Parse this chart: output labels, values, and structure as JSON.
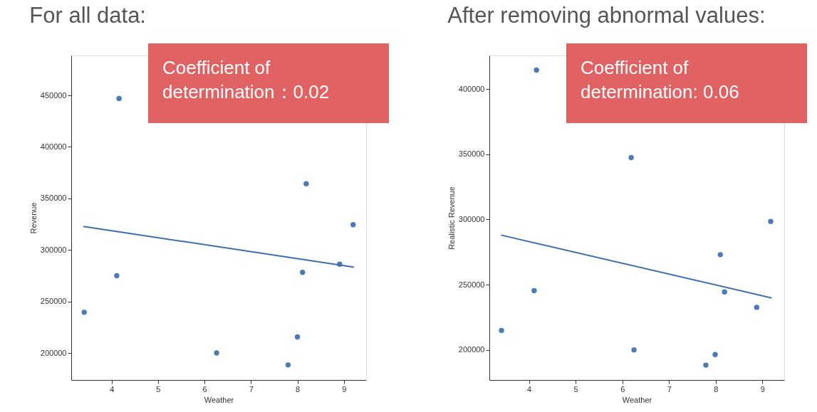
{
  "chart_data": [
    {
      "type": "scatter",
      "title": "For all data:",
      "xlabel": "Weather",
      "ylabel": "Revenue",
      "xlim": [
        3.13,
        9.48
      ],
      "ylim": [
        173800,
        488700
      ],
      "xticks": [
        4,
        5,
        6,
        7,
        8,
        9
      ],
      "yticks": [
        200000,
        250000,
        300000,
        350000,
        400000,
        450000
      ],
      "grid": false,
      "annotations": [
        "Coefficient of\ndetermination：0.02"
      ],
      "series": [
        {
          "type": "scatter",
          "marker": "circle",
          "color": "#4c7bb3",
          "x": [
            4.16,
            4.11,
            3.41,
            6.26,
            8.0,
            7.8,
            8.11,
            8.19,
            8.91,
            9.2
          ],
          "values": [
            447000,
            275000,
            239500,
            200000,
            215600,
            188400,
            278300,
            364300,
            286200,
            324500
          ]
        },
        {
          "type": "line",
          "color": "#3d6fa8",
          "x": [
            3.39,
            9.22
          ],
          "values": [
            322800,
            283300
          ]
        }
      ]
    },
    {
      "type": "scatter",
      "title": "After removing abnormal values:",
      "xlabel": "Weather",
      "ylabel": "Realistic Revenue",
      "xlim": [
        3.15,
        9.47
      ],
      "ylim": [
        176900,
        425700
      ],
      "xticks": [
        4,
        5,
        6,
        7,
        8,
        9
      ],
      "yticks": [
        200000,
        250000,
        300000,
        350000,
        400000
      ],
      "grid": false,
      "annotations": [
        "Coefficient of\ndetermination: 0.06"
      ],
      "series": [
        {
          "type": "scatter",
          "marker": "circle",
          "color": "#4c7bb3",
          "x": [
            4.16,
            6.19,
            9.18,
            8.1,
            4.11,
            8.19,
            8.88,
            3.41,
            6.25,
            7.99,
            7.79
          ],
          "values": [
            414500,
            347400,
            298500,
            273000,
            245400,
            244400,
            232600,
            214900,
            200000,
            196400,
            188300
          ]
        },
        {
          "type": "line",
          "color": "#3d6fa8",
          "x": [
            3.4,
            9.2
          ],
          "values": [
            288000,
            239800
          ]
        }
      ]
    }
  ]
}
